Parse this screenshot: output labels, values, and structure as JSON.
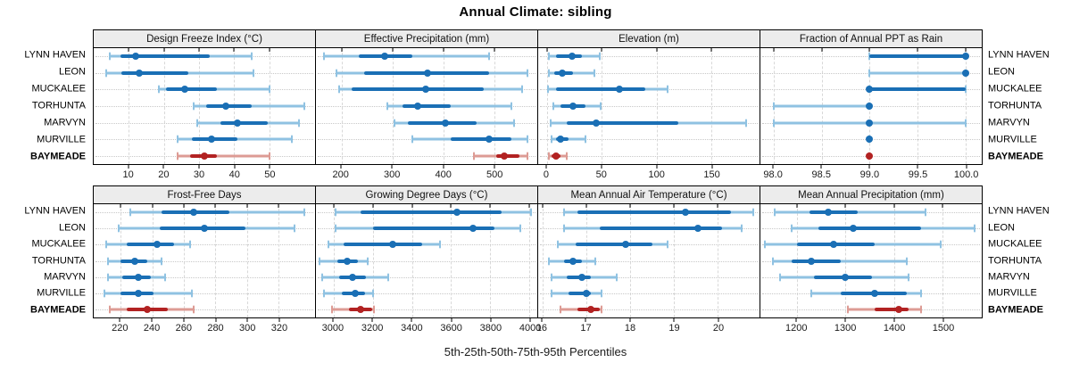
{
  "title": "Annual Climate: sibling",
  "caption": "5th-25th-50th-75th-95th Percentiles",
  "categories": [
    "LYNN HAVEN",
    "LEON",
    "MUCKALEE",
    "TORHUNTA",
    "MARVYN",
    "MURVILLE",
    "BAYMEADE"
  ],
  "highlight_category": "BAYMEADE",
  "colors": {
    "series_dark": "#1a6fb5",
    "series_light": "#8fc2e2",
    "highlight_dark": "#b22222",
    "highlight_light": "#dd9b94",
    "grid": "#d8d8d8",
    "strip_bg": "#ececec",
    "panel_border": "#000000"
  },
  "chart_data": [
    {
      "type": "percentile-dotplot",
      "title": "Design Freeze Index (°C)",
      "xlim": [
        0,
        63
      ],
      "ticks": [
        {
          "v": 10,
          "t": "10"
        },
        {
          "v": 20,
          "t": "20"
        },
        {
          "v": 30,
          "t": "30"
        },
        {
          "v": 40,
          "t": "40"
        },
        {
          "v": 50,
          "t": "50"
        }
      ],
      "series": [
        {
          "name": "LYNN HAVEN",
          "p": [
            4.5,
            7.5,
            12,
            33,
            45
          ]
        },
        {
          "name": "LEON",
          "p": [
            3.5,
            8,
            13,
            27,
            45.5
          ]
        },
        {
          "name": "MUCKALEE",
          "p": [
            18.5,
            20.5,
            26,
            35,
            50
          ]
        },
        {
          "name": "TORHUNTA",
          "p": [
            28.5,
            32,
            37.5,
            45,
            60
          ]
        },
        {
          "name": "MARVYN",
          "p": [
            29.5,
            36,
            41,
            49.5,
            58.5
          ]
        },
        {
          "name": "MURVILLE",
          "p": [
            24,
            28,
            33.5,
            41,
            56.5
          ]
        },
        {
          "name": "BAYMEADE",
          "p": [
            24,
            27.5,
            31.5,
            35,
            50
          ]
        }
      ]
    },
    {
      "type": "percentile-dotplot",
      "title": "Effective Precipitation (mm)",
      "xlim": [
        150,
        585
      ],
      "ticks": [
        {
          "v": 200,
          "t": "200"
        },
        {
          "v": 300,
          "t": "300"
        },
        {
          "v": 400,
          "t": "400"
        },
        {
          "v": 500,
          "t": "500"
        }
      ],
      "series": [
        {
          "name": "LYNN HAVEN",
          "p": [
            165,
            235,
            285,
            340,
            490
          ]
        },
        {
          "name": "LEON",
          "p": [
            190,
            245,
            370,
            490,
            565
          ]
        },
        {
          "name": "MUCKALEE",
          "p": [
            195,
            220,
            365,
            480,
            555
          ]
        },
        {
          "name": "TORHUNTA",
          "p": [
            290,
            320,
            350,
            415,
            535
          ]
        },
        {
          "name": "MARVYN",
          "p": [
            305,
            330,
            405,
            465,
            540
          ]
        },
        {
          "name": "MURVILLE",
          "p": [
            340,
            415,
            490,
            535,
            565
          ]
        },
        {
          "name": "BAYMEADE",
          "p": [
            460,
            505,
            520,
            550,
            565
          ]
        }
      ]
    },
    {
      "type": "percentile-dotplot",
      "title": "Elevation (m)",
      "xlim": [
        -8,
        194
      ],
      "ticks": [
        {
          "v": 0,
          "t": "0"
        },
        {
          "v": 50,
          "t": "50"
        },
        {
          "v": 100,
          "t": "100"
        },
        {
          "v": 150,
          "t": "150"
        }
      ],
      "series": [
        {
          "name": "LYNN HAVEN",
          "p": [
            2,
            8,
            23,
            32,
            48
          ]
        },
        {
          "name": "LEON",
          "p": [
            2,
            7,
            14,
            24,
            43
          ]
        },
        {
          "name": "MUCKALEE",
          "p": [
            1,
            8,
            66,
            90,
            110
          ]
        },
        {
          "name": "TORHUNTA",
          "p": [
            6,
            12,
            24,
            35,
            49
          ]
        },
        {
          "name": "MARVYN",
          "p": [
            3,
            18,
            45,
            120,
            182
          ]
        },
        {
          "name": "MURVILLE",
          "p": [
            4,
            8,
            12,
            20,
            35
          ]
        },
        {
          "name": "BAYMEADE",
          "p": [
            2,
            4,
            8,
            12,
            18
          ]
        }
      ]
    },
    {
      "type": "percentile-dotplot",
      "title": "Fraction of Annual PPT as Rain",
      "xlim": [
        97.86,
        100.17
      ],
      "ticks": [
        {
          "v": 98.0,
          "t": "98.0"
        },
        {
          "v": 98.5,
          "t": "98.5"
        },
        {
          "v": 99.0,
          "t": "99.0"
        },
        {
          "v": 99.5,
          "t": "99.5"
        },
        {
          "v": 100.0,
          "t": "100.0"
        }
      ],
      "series": [
        {
          "name": "LYNN HAVEN",
          "p": [
            99,
            99,
            100,
            100,
            100
          ]
        },
        {
          "name": "LEON",
          "p": [
            99,
            100,
            100,
            100,
            100
          ]
        },
        {
          "name": "MUCKALEE",
          "p": [
            99,
            99,
            99,
            100,
            100
          ]
        },
        {
          "name": "TORHUNTA",
          "p": [
            98,
            99,
            99,
            99,
            99
          ]
        },
        {
          "name": "MARVYN",
          "p": [
            98,
            99,
            99,
            99,
            100
          ]
        },
        {
          "name": "MURVILLE",
          "p": [
            99,
            99,
            99,
            99,
            99
          ]
        },
        {
          "name": "BAYMEADE",
          "p": [
            99,
            99,
            99,
            99,
            99
          ]
        }
      ]
    },
    {
      "type": "percentile-dotplot",
      "title": "Frost-Free Days",
      "xlim": [
        203,
        343
      ],
      "ticks": [
        {
          "v": 220,
          "t": "220"
        },
        {
          "v": 240,
          "t": "240"
        },
        {
          "v": 260,
          "t": "260"
        },
        {
          "v": 280,
          "t": "280"
        },
        {
          "v": 300,
          "t": "300"
        },
        {
          "v": 320,
          "t": "320"
        }
      ],
      "series": [
        {
          "name": "LYNN HAVEN",
          "p": [
            226,
            246,
            266,
            289,
            336
          ]
        },
        {
          "name": "LEON",
          "p": [
            219,
            245,
            273,
            299,
            330
          ]
        },
        {
          "name": "MUCKALEE",
          "p": [
            211,
            224,
            243,
            254,
            264
          ]
        },
        {
          "name": "TORHUNTA",
          "p": [
            212,
            220,
            229,
            237,
            246
          ]
        },
        {
          "name": "MARVYN",
          "p": [
            212,
            221,
            231,
            239,
            248
          ]
        },
        {
          "name": "MURVILLE",
          "p": [
            210,
            220,
            231,
            241,
            265
          ]
        },
        {
          "name": "BAYMEADE",
          "p": [
            213,
            224,
            237,
            250,
            266
          ]
        }
      ]
    },
    {
      "type": "percentile-dotplot",
      "title": "Growing Degree Days (°C)",
      "xlim": [
        2910,
        4040
      ],
      "ticks": [
        {
          "v": 3000,
          "t": "3000"
        },
        {
          "v": 3200,
          "t": "3200"
        },
        {
          "v": 3400,
          "t": "3400"
        },
        {
          "v": 3600,
          "t": "3600"
        },
        {
          "v": 3800,
          "t": "3800"
        },
        {
          "v": 4000,
          "t": "4000"
        }
      ],
      "series": [
        {
          "name": "LYNN HAVEN",
          "p": [
            3010,
            3140,
            3630,
            3860,
            4010
          ]
        },
        {
          "name": "LEON",
          "p": [
            3010,
            3200,
            3710,
            3820,
            3955
          ]
        },
        {
          "name": "MUCKALEE",
          "p": [
            2975,
            3050,
            3300,
            3450,
            3545
          ]
        },
        {
          "name": "TORHUNTA",
          "p": [
            2930,
            3020,
            3070,
            3125,
            3175
          ]
        },
        {
          "name": "MARVYN",
          "p": [
            2940,
            3030,
            3095,
            3165,
            3280
          ]
        },
        {
          "name": "MURVILLE",
          "p": [
            2950,
            3040,
            3110,
            3160,
            3200
          ]
        },
        {
          "name": "BAYMEADE",
          "p": [
            2990,
            3080,
            3140,
            3195,
            3205
          ]
        }
      ]
    },
    {
      "type": "percentile-dotplot",
      "title": "Mean Annual Air Temperature (°C)",
      "xlim": [
        15.9,
        20.95
      ],
      "ticks": [
        {
          "v": 16,
          "t": "16"
        },
        {
          "v": 17,
          "t": "17"
        },
        {
          "v": 18,
          "t": "18"
        },
        {
          "v": 19,
          "t": "19"
        },
        {
          "v": 20,
          "t": "20"
        }
      ],
      "series": [
        {
          "name": "LYNN HAVEN",
          "p": [
            16.5,
            16.8,
            19.25,
            20.3,
            20.8
          ]
        },
        {
          "name": "LEON",
          "p": [
            16.5,
            17.3,
            19.55,
            20.1,
            20.55
          ]
        },
        {
          "name": "MUCKALEE",
          "p": [
            16.35,
            16.75,
            17.9,
            18.5,
            18.85
          ]
        },
        {
          "name": "TORHUNTA",
          "p": [
            16.15,
            16.5,
            16.7,
            16.9,
            17.2
          ]
        },
        {
          "name": "MARVYN",
          "p": [
            16.2,
            16.55,
            16.9,
            17.1,
            17.7
          ]
        },
        {
          "name": "MURVILLE",
          "p": [
            16.2,
            16.6,
            17.0,
            17.1,
            17.35
          ]
        },
        {
          "name": "BAYMEADE",
          "p": [
            16.4,
            16.8,
            17.1,
            17.3,
            17.35
          ]
        }
      ]
    },
    {
      "type": "percentile-dotplot",
      "title": "Mean Annual Precipitation (mm)",
      "xlim": [
        1125,
        1580
      ],
      "ticks": [
        {
          "v": 1200,
          "t": "1200"
        },
        {
          "v": 1300,
          "t": "1300"
        },
        {
          "v": 1400,
          "t": "1400"
        },
        {
          "v": 1500,
          "t": "1500"
        }
      ],
      "series": [
        {
          "name": "LYNN HAVEN",
          "p": [
            1155,
            1225,
            1265,
            1325,
            1465
          ]
        },
        {
          "name": "LEON",
          "p": [
            1190,
            1245,
            1315,
            1455,
            1565
          ]
        },
        {
          "name": "MUCKALEE",
          "p": [
            1135,
            1200,
            1275,
            1360,
            1495
          ]
        },
        {
          "name": "TORHUNTA",
          "p": [
            1150,
            1190,
            1230,
            1290,
            1425
          ]
        },
        {
          "name": "MARVYN",
          "p": [
            1165,
            1235,
            1300,
            1355,
            1430
          ]
        },
        {
          "name": "MURVILLE",
          "p": [
            1230,
            1290,
            1360,
            1425,
            1455
          ]
        },
        {
          "name": "BAYMEADE",
          "p": [
            1305,
            1360,
            1410,
            1430,
            1455
          ]
        }
      ]
    }
  ]
}
